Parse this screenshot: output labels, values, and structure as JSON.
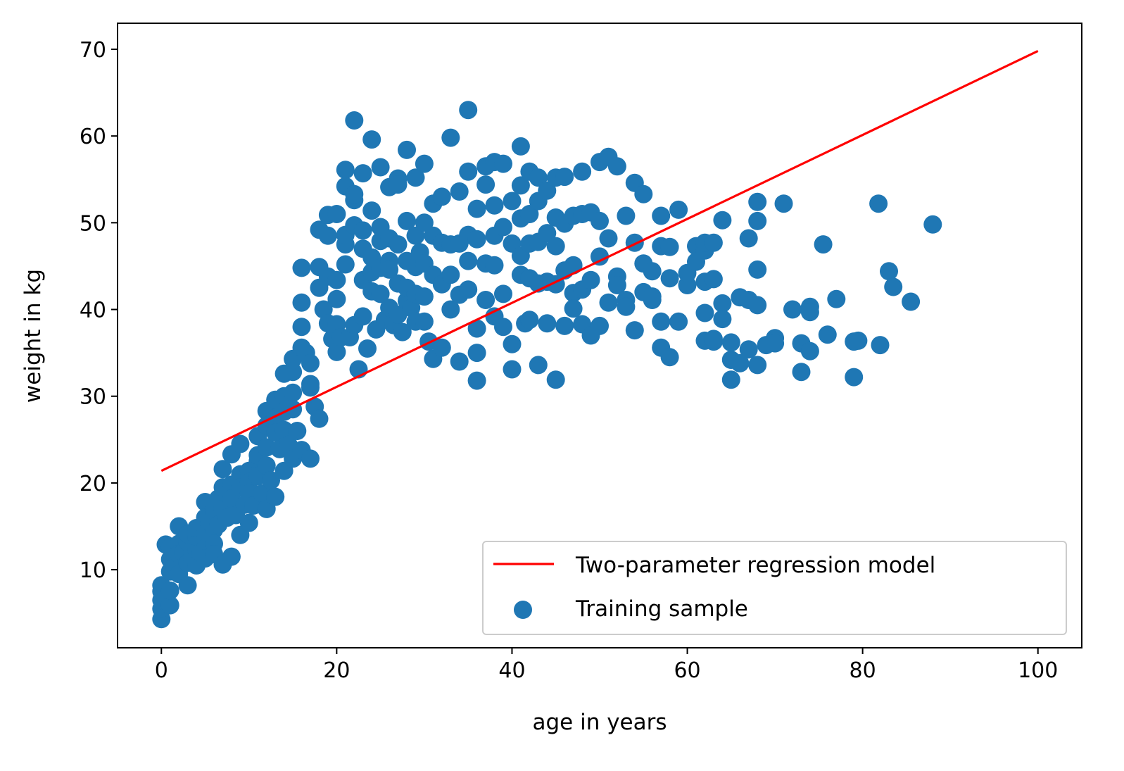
{
  "chart_data": {
    "type": "scatter",
    "title": "",
    "xlabel": "age in years",
    "ylabel": "weight in kg",
    "xlim": [
      -5,
      105
    ],
    "ylim": [
      1,
      73
    ],
    "x_ticks": [
      0,
      20,
      40,
      60,
      80,
      100
    ],
    "y_ticks": [
      10,
      20,
      30,
      40,
      50,
      60,
      70
    ],
    "grid": false,
    "legend_position": "lower-right",
    "colors": {
      "scatter": "#1f77b4",
      "line": "#ff0000"
    },
    "series": [
      {
        "name": "Two-parameter regression model",
        "type": "line",
        "x": [
          0,
          100
        ],
        "y": [
          21.4,
          69.8
        ]
      },
      {
        "name": "Training sample",
        "type": "scatter",
        "x": [
          0,
          0,
          0,
          0,
          0,
          0.5,
          0.5,
          1,
          1,
          1,
          1,
          1,
          1.5,
          2,
          2,
          2,
          2,
          2.5,
          3,
          3,
          3,
          3,
          3.5,
          4,
          4,
          4,
          4,
          4.5,
          5,
          5,
          5,
          5,
          5,
          5.5,
          6,
          6,
          6,
          6,
          6.5,
          6.5,
          7,
          7,
          7,
          7,
          7.5,
          8,
          8,
          8,
          8,
          8.5,
          9,
          9,
          9,
          9,
          9.5,
          10,
          10,
          10,
          10,
          10.5,
          11,
          11,
          11,
          11,
          11.5,
          12,
          12,
          12,
          12,
          12,
          12.5,
          13,
          13,
          13,
          13,
          13.5,
          14,
          14,
          14,
          14,
          14,
          14.5,
          15,
          15,
          15,
          15,
          15,
          15.5,
          16,
          16,
          16,
          16,
          16,
          16.5,
          17,
          17,
          17,
          17,
          17.5,
          18,
          18,
          18,
          18,
          18.5,
          19,
          19,
          19,
          19,
          19.5,
          20,
          20,
          20,
          20,
          20,
          20.5,
          21,
          21,
          21,
          21,
          21,
          21.5,
          22,
          22,
          22,
          22,
          22,
          22.5,
          23,
          23,
          23,
          23,
          23,
          23.5,
          24,
          24,
          24,
          24,
          24,
          24.5,
          25,
          25,
          25,
          25,
          25,
          25.5,
          26,
          26,
          26,
          26,
          26,
          26.5,
          27,
          27,
          27,
          27,
          27,
          27.5,
          28,
          28,
          28,
          28,
          28,
          28.5,
          29,
          29,
          29,
          29,
          29,
          29.5,
          30,
          30,
          30,
          30,
          30,
          30.5,
          31,
          31,
          31,
          31,
          32,
          32,
          32,
          32,
          33,
          33,
          33,
          33,
          34,
          34,
          34,
          34,
          35,
          35,
          35,
          35,
          35,
          36,
          36,
          36,
          36,
          36,
          37,
          37,
          37,
          37,
          38,
          38,
          38,
          38,
          38,
          39,
          39,
          39,
          39,
          40,
          40,
          40,
          40,
          41,
          41,
          41,
          41,
          41,
          41.5,
          42,
          42,
          42,
          42,
          42,
          43,
          43,
          43,
          43,
          43,
          44,
          44,
          44,
          44,
          45,
          45,
          45,
          45,
          45,
          46,
          46,
          46,
          46,
          47,
          47,
          47,
          47,
          48,
          48,
          48,
          48,
          49,
          49,
          49,
          50,
          50,
          50,
          50,
          51,
          51,
          51,
          52,
          52,
          52,
          53,
          53,
          53,
          54,
          54,
          54,
          55,
          55,
          55,
          56,
          56,
          56,
          57,
          57,
          57,
          57,
          58,
          58,
          58,
          59,
          59,
          60,
          60,
          61,
          61,
          62,
          62,
          62,
          62,
          62,
          63,
          63,
          63,
          63,
          64,
          64,
          64,
          65,
          65,
          65,
          66,
          66,
          67,
          67,
          67,
          68,
          68,
          68,
          68,
          68,
          69,
          70,
          70,
          71,
          72,
          73,
          73,
          74,
          74,
          74,
          75.5,
          76,
          77,
          79,
          79,
          79.5,
          81.8,
          82,
          83,
          83.5,
          85.5,
          88
        ],
        "y": [
          4.3,
          5.5,
          6.5,
          7.5,
          8.2,
          6.8,
          12.9,
          5.9,
          7.6,
          9.8,
          11.2,
          12.6,
          10.4,
          15,
          13,
          11.8,
          9.5,
          12,
          8.2,
          10.8,
          13.2,
          14.1,
          11.5,
          12.3,
          13.8,
          10.5,
          14.8,
          12,
          17.8,
          16,
          14.2,
          12.5,
          11.3,
          15.5,
          16.8,
          14.6,
          13,
          11.8,
          18.2,
          15.2,
          10.6,
          21.6,
          19.5,
          17,
          16,
          11.5,
          23.3,
          19.8,
          18.2,
          16.3,
          14,
          24.5,
          21,
          19.5,
          17.5,
          15.4,
          21.4,
          20.1,
          18.8,
          17.4,
          22.5,
          25.4,
          23.2,
          20.8,
          18.8,
          17,
          28.3,
          26.6,
          24.1,
          22,
          20.3,
          18.4,
          29.6,
          27.5,
          25.8,
          23.9,
          21.4,
          32.6,
          30,
          28.2,
          26.1,
          24.4,
          22.8,
          34.3,
          32.8,
          30.4,
          28.5,
          26,
          23.8,
          35.6,
          44.8,
          40.8,
          38,
          35,
          31,
          22.8,
          33.8,
          31.4,
          28.8,
          27.4,
          42.5,
          44.9,
          49.2,
          40,
          38.4,
          48.5,
          50.9,
          43.8,
          36.6,
          35.1,
          41.2,
          43.4,
          51,
          38.3,
          36.8,
          47.5,
          56.1,
          54.2,
          48.6,
          45.2,
          36.8,
          52.6,
          61.8,
          53.3,
          49.7,
          38.2,
          33.1,
          47,
          55.7,
          49.1,
          43.4,
          39.2,
          35.5,
          44.3,
          59.6,
          51.4,
          46,
          42.1,
          37.7,
          49.5,
          56.4,
          47.9,
          44.8,
          41.8,
          38.8,
          45.6,
          54.1,
          48.2,
          44.6,
          40.2,
          38.2,
          55.1,
          54.4,
          47.5,
          43,
          39.4,
          37.4,
          41,
          58.4,
          50.2,
          45.6,
          42.5,
          40.2,
          55.2,
          48.5,
          44.9,
          41.8,
          38.6,
          46.6,
          56.8,
          50,
          45.3,
          41.5,
          38.6,
          36.3,
          52.2,
          48.5,
          44,
          34.3,
          53,
          47.7,
          42.9,
          35.6,
          59.8,
          47.5,
          44,
          40,
          53.6,
          47.6,
          41.7,
          34,
          63,
          55.9,
          48.6,
          45.6,
          42.3,
          51.6,
          48.1,
          37.8,
          35,
          31.8,
          56.5,
          54.4,
          45.3,
          41.1,
          57,
          52,
          48.5,
          45.1,
          39.2,
          56.8,
          49.5,
          41.8,
          38,
          52.5,
          47.6,
          36,
          33.1,
          58.8,
          54.3,
          50.5,
          46.2,
          44,
          38.4,
          55.9,
          51,
          47.6,
          43.6,
          38.8,
          33.6,
          55.2,
          52.5,
          47.8,
          43,
          38.4,
          53.7,
          48.8,
          43.2,
          31.9,
          55.2,
          50.6,
          47.3,
          42.9,
          38.1,
          55.3,
          49.9,
          44.5,
          41.9,
          50.8,
          45.1,
          40.1,
          38.3,
          55.9,
          51,
          42.3,
          37,
          51.2,
          43.4,
          38.1,
          57,
          50.2,
          46.1,
          40.8,
          57.6,
          48.2,
          43.8,
          56.5,
          42.8,
          41.1,
          50.8,
          40.3,
          37.6,
          54.6,
          47.7,
          42,
          53.3,
          45.3,
          41.1,
          44.4,
          41.5,
          35.6,
          50.8,
          47.3,
          38.6,
          34.5,
          47.2,
          43.6,
          38.6,
          51.5,
          42.8,
          44.2,
          47.3,
          45.5,
          46.8,
          47.7,
          43.2,
          39.6,
          36.4,
          36.3,
          47.7,
          43.5,
          36.6,
          50.3,
          40.7,
          38.9,
          36.2,
          34.2,
          31.9,
          33.8,
          41.4,
          35.4,
          48.2,
          41.1,
          50.2,
          52.4,
          44.6,
          40.5,
          33.6,
          35.9,
          36.7,
          36.1,
          52.2,
          40,
          36.1,
          32.8,
          40.3,
          39.7,
          35.2,
          47.5,
          37.1,
          41.2,
          36.3,
          32.2,
          36.4,
          52.2,
          35.9,
          44.4,
          42.6,
          40.9,
          49.8
        ]
      }
    ]
  }
}
